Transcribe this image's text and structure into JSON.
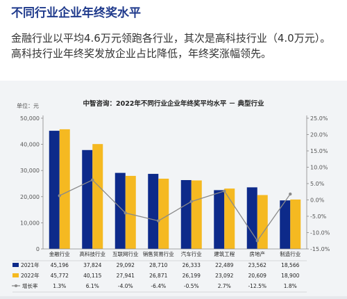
{
  "header": {
    "title": "不同行业企业年终奖水平",
    "summary": "金融行业以平均4.6万元领跑各行业，其次是高科技行业（4.0万元）。高科技行业年终奖发放企业占比降低，年终奖涨幅领先。"
  },
  "colors": {
    "bar_2021": "#0d2a8a",
    "bar_2022": "#f5b921",
    "growth_line": "#8a8a8a",
    "title": "#1f3a8c",
    "card_bg": "#f2f4f6"
  },
  "chart_data": {
    "type": "bar",
    "title": "中智咨询：2022年不同行业企业年终奖平均水平 － 典型行业",
    "unit_label": "单位：元",
    "categories": [
      "金融行业",
      "高科技行业",
      "互联网行业",
      "销售贸易行业",
      "汽车行业",
      "建筑工程",
      "房地产",
      "制造行业"
    ],
    "series": [
      {
        "name": "2021年",
        "type": "bar",
        "axis": "left",
        "values": [
          45196,
          37824,
          29092,
          28710,
          26333,
          22489,
          23562,
          18566
        ],
        "display": [
          "45,196",
          "37,824",
          "29,092",
          "28,710",
          "26,333",
          "22,489",
          "23,562",
          "18,566"
        ]
      },
      {
        "name": "2022年",
        "type": "bar",
        "axis": "left",
        "values": [
          45772,
          40115,
          27941,
          26871,
          26199,
          23092,
          20609,
          18900
        ],
        "display": [
          "45,772",
          "40,115",
          "27,941",
          "26,871",
          "26,199",
          "23,092",
          "20,609",
          "18,900"
        ]
      },
      {
        "name": "增长率",
        "type": "line",
        "axis": "right",
        "values": [
          1.3,
          6.1,
          -4.0,
          -6.4,
          -0.5,
          2.7,
          -12.5,
          1.8
        ],
        "display": [
          "1.3%",
          "6.1%",
          "-4.0%",
          "-6.4%",
          "-0.5%",
          "2.7%",
          "-12.5%",
          "1.8%"
        ]
      }
    ],
    "y_left": {
      "min": 0,
      "max": 50000,
      "ticks": [
        0,
        10000,
        20000,
        30000,
        40000,
        50000
      ],
      "tick_labels": [
        "0",
        "10,000",
        "20,000",
        "30,000",
        "40,000",
        "50,000"
      ]
    },
    "y_right": {
      "min": -15,
      "max": 25,
      "ticks": [
        25,
        20,
        15,
        10,
        5,
        0,
        -5,
        -10,
        -15
      ],
      "tick_labels": [
        "25.0%",
        "20.0%",
        "15.0%",
        "10.0%",
        "5.0%",
        "0.0%",
        "-5.0%",
        "-10.0%",
        "-15.0%"
      ]
    },
    "grid": false,
    "legend": "data-table-below"
  }
}
